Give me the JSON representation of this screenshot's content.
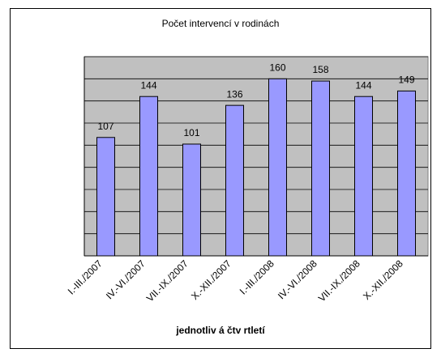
{
  "chart_data": {
    "type": "bar",
    "title": "Počet intervencí v rodinách",
    "x_label": "jednotliv á čtv rtletí",
    "categories": [
      "I.-III./2007",
      "IV.-VI./2007",
      "VII.-IX./2007",
      "X.-XII./2007",
      "I.-III./2008",
      "IV.-VI./2008",
      "VII.-IX./2008",
      "X.-XII./2008"
    ],
    "values": [
      107,
      144,
      101,
      136,
      160,
      158,
      144,
      149
    ],
    "color": "#9999ff",
    "plot_background": "#c0c0c0",
    "ylim": [
      0,
      180
    ],
    "yticks": [
      0,
      20,
      40,
      60,
      80,
      100,
      120,
      140,
      160,
      180
    ],
    "grid": true
  }
}
